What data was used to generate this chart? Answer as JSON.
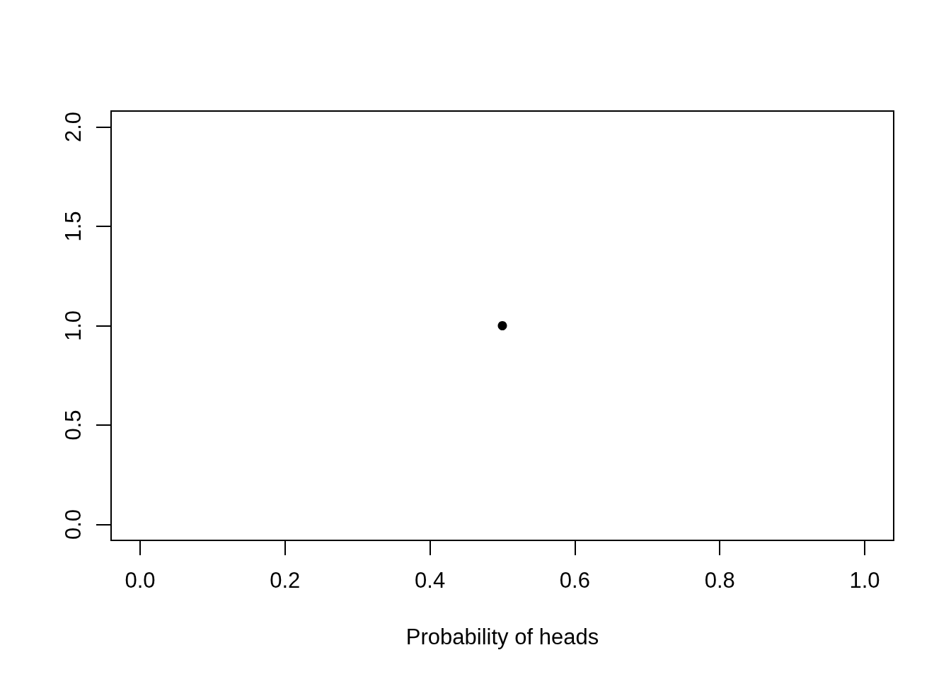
{
  "chart_data": {
    "type": "scatter",
    "xlabel": "Probability of heads",
    "x": [
      0.5
    ],
    "values": [
      1.0
    ],
    "color": "#000000",
    "marker": "circle",
    "xlim": [
      -0.04,
      1.04
    ],
    "xticks": [
      {
        "value": 0,
        "label": "0.0"
      },
      0.2,
      0.4,
      0.6,
      0.8,
      {
        "value": 1,
        "label": "1.0"
      }
    ],
    "ylim": [
      -0.08,
      2.08
    ],
    "yticks": [
      {
        "value": 0,
        "label": "0.0"
      },
      0.5,
      {
        "value": 1,
        "label": "1.0"
      },
      1.5,
      {
        "value": 2,
        "label": "2.0"
      }
    ],
    "grid": false
  }
}
